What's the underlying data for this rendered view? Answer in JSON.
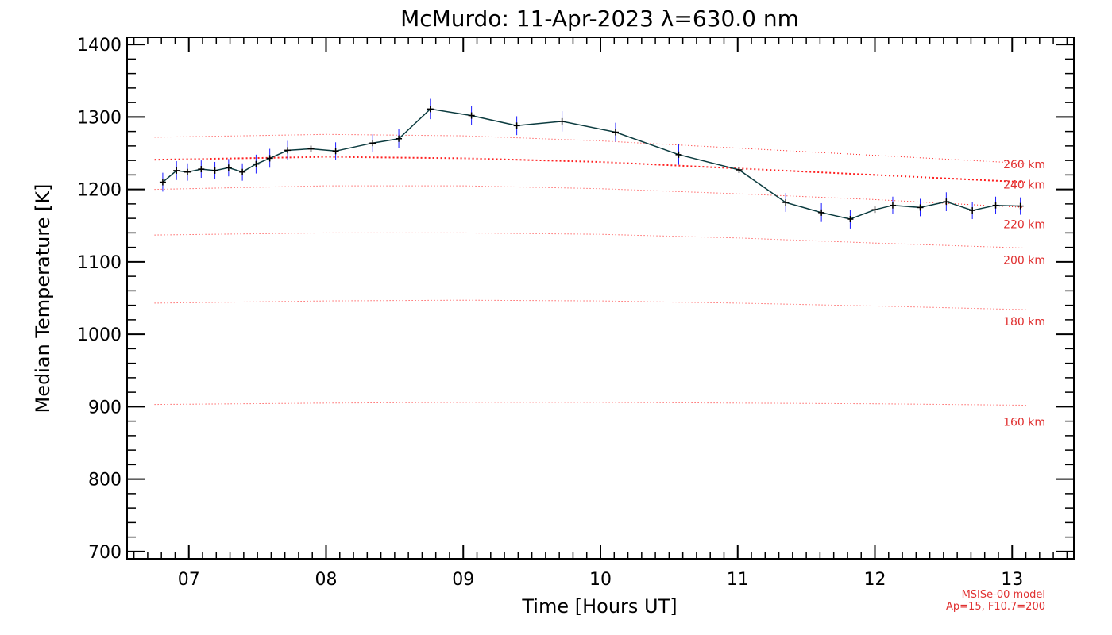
{
  "chart_data": {
    "type": "line",
    "title": "McMurdo: 11-Apr-2023 λ=630.0 nm",
    "xlabel": "Time [Hours UT]",
    "ylabel": "Median Temperature [K]",
    "xlim": [
      6.55,
      13.45
    ],
    "ylim": [
      690,
      1410
    ],
    "x_ticks": [
      7,
      8,
      9,
      10,
      11,
      12,
      13
    ],
    "x_tick_labels": [
      "07",
      "08",
      "09",
      "10",
      "11",
      "12",
      "13"
    ],
    "y_ticks": [
      700,
      800,
      900,
      1000,
      1100,
      1200,
      1300,
      1400
    ],
    "y_tick_labels": [
      "700",
      "800",
      "900",
      "1000",
      "1100",
      "1200",
      "1300",
      "1400"
    ],
    "series": [
      {
        "color": "#0b3b3f",
        "marker_color": "#000000",
        "errorbar_color": "#1a1aff",
        "x": [
          6.81,
          6.91,
          6.99,
          7.09,
          7.19,
          7.29,
          7.39,
          7.49,
          7.59,
          7.72,
          7.89,
          8.07,
          8.34,
          8.53,
          8.76,
          9.06,
          9.39,
          9.72,
          10.11,
          10.57,
          11.01,
          11.35,
          11.61,
          11.82,
          12.0,
          12.13,
          12.33,
          12.52,
          12.71,
          12.88,
          13.06
        ],
        "y": [
          1210,
          1226,
          1224,
          1228,
          1226,
          1230,
          1224,
          1235,
          1243,
          1254,
          1256,
          1253,
          1264,
          1270,
          1311,
          1302,
          1288,
          1294,
          1279,
          1248,
          1227,
          1182,
          1168,
          1159,
          1172,
          1178,
          1175,
          1183,
          1171,
          1178,
          1177
        ],
        "err": [
          13,
          13,
          12,
          12,
          12,
          12,
          12,
          13,
          13,
          13,
          13,
          12,
          12,
          13,
          14,
          13,
          13,
          14,
          13,
          14,
          13,
          13,
          13,
          13,
          12,
          12,
          12,
          13,
          12,
          12,
          12
        ]
      }
    ],
    "model_curves": [
      {
        "label": "260 km",
        "x": [
          6.75,
          8.0,
          9.0,
          10.0,
          11.0,
          12.0,
          13.1
        ],
        "y": [
          1272,
          1276,
          1274,
          1267,
          1257,
          1247,
          1236
        ]
      },
      {
        "label": "240 km",
        "x": [
          6.75,
          8.0,
          9.0,
          10.0,
          11.0,
          12.0,
          13.1
        ],
        "y": [
          1241,
          1245,
          1243,
          1238,
          1229,
          1220,
          1210
        ]
      },
      {
        "label": "220 km",
        "x": [
          6.75,
          8.0,
          9.0,
          10.0,
          11.0,
          12.0,
          13.1
        ],
        "y": [
          1200,
          1205,
          1205,
          1201,
          1194,
          1186,
          1175
        ]
      },
      {
        "label": "200 km",
        "x": [
          6.75,
          8.0,
          9.0,
          10.0,
          11.0,
          12.0,
          13.1
        ],
        "y": [
          1137,
          1140,
          1140,
          1138,
          1133,
          1126,
          1119
        ]
      },
      {
        "label": "180 km",
        "x": [
          6.75,
          8.0,
          9.0,
          10.0,
          11.0,
          12.0,
          13.1
        ],
        "y": [
          1043,
          1046,
          1047,
          1046,
          1043,
          1039,
          1034
        ]
      },
      {
        "label": "160 km",
        "x": [
          6.75,
          8.0,
          9.0,
          10.0,
          11.0,
          12.0,
          13.1
        ],
        "y": [
          903,
          905,
          906,
          906,
          905,
          904,
          902
        ]
      }
    ],
    "model_color": "#ff2020",
    "grid": false
  },
  "annotations": {
    "model_name": "MSISe-00 model",
    "model_params": "Ap=15, F10.7=200"
  }
}
